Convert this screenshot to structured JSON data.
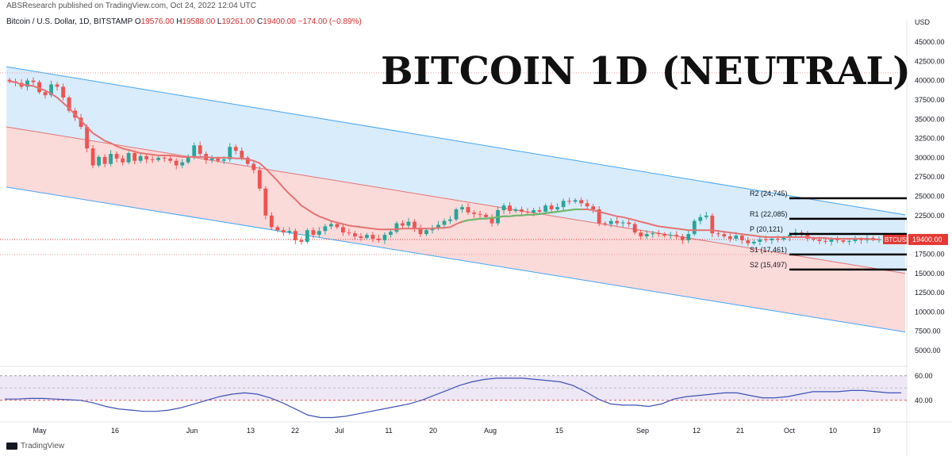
{
  "header": {
    "published": "ABSResearch published on TradingView.com, Oct 24, 2022 12:04 UTC"
  },
  "symbol": {
    "name": "Bitcoin / U.S. Dollar, 1D, BITSTAMP",
    "open_label": "O",
    "open": "19576.00",
    "high_label": "H",
    "high": "19588.00",
    "low_label": "L",
    "low": "19261.00",
    "close_label": "C",
    "close": "19400.00",
    "change": "−174.00 (−0.89%)"
  },
  "title": "BITCOIN 1D (NEUTRAL)",
  "footer": {
    "brand": "TradingView"
  },
  "colors": {
    "up": "#26a69a",
    "down": "#ef5350",
    "ma_down": "#e57373",
    "ma_up": "#66bb6a",
    "channel_upper": "#d9ecfb",
    "channel_lower": "#fbdada",
    "channel_line": "#42a5f5",
    "pivot": "#000000",
    "rsi": "#3f51b5",
    "rsi_band": "#ede7f6",
    "price_tag": "#e53935"
  },
  "chart_data": {
    "type": "candlestick",
    "currency_label": "USD",
    "ylim": [
      5000,
      45000
    ],
    "y_ticks": [
      "45000.00",
      "42500.00",
      "40000.00",
      "37500.00",
      "35000.00",
      "32500.00",
      "30000.00",
      "27500.00",
      "25000.00",
      "22500.00",
      "20000.00",
      "17500.00",
      "15000.00",
      "12500.00",
      "10000.00",
      "7500.00",
      "5000.00"
    ],
    "x_ticks": [
      "May",
      "16",
      "Jun",
      "13",
      "22",
      "Jul",
      "11",
      "20",
      "Aug",
      "15",
      "Sep",
      "12",
      "21",
      "Oct",
      "10",
      "19"
    ],
    "current_price_label": "19400.00",
    "ticker_tag": "BTCUSD",
    "pivots": [
      {
        "label": "R2 (24,745)",
        "value": 24745
      },
      {
        "label": "R1 (22,085)",
        "value": 22085
      },
      {
        "label": "P (20,121)",
        "value": 20121
      },
      {
        "label": "S1 (17,461)",
        "value": 17461
      },
      {
        "label": "S2 (15,497)",
        "value": 15497
      }
    ],
    "channel": {
      "upper_start": 41800,
      "upper_end": 22600,
      "mid_start": 34000,
      "mid_end": 15000,
      "lower_start": 26200,
      "lower_end": 7400
    },
    "close_series": [
      39900,
      39700,
      39200,
      40000,
      39800,
      38500,
      38100,
      39500,
      39200,
      37800,
      36100,
      35200,
      34000,
      31200,
      29000,
      30100,
      29200,
      30500,
      29900,
      29400,
      30600,
      29600,
      30200,
      29800,
      29700,
      30000,
      29900,
      29600,
      29000,
      29400,
      30200,
      31600,
      30500,
      29700,
      29900,
      29600,
      29800,
      31400,
      30900,
      30000,
      29200,
      28400,
      26000,
      22500,
      21000,
      20600,
      20300,
      20500,
      19300,
      19100,
      20600,
      20000,
      20500,
      21100,
      21400,
      21000,
      20300,
      20200,
      19800,
      19600,
      20000,
      19500,
      19300,
      20000,
      20400,
      21500,
      21200,
      21700,
      20900,
      20100,
      20600,
      20900,
      21300,
      21800,
      22000,
      23300,
      23600,
      22900,
      22700,
      22600,
      22300,
      21500,
      23200,
      23800,
      23100,
      23300,
      23000,
      22900,
      23200,
      23000,
      23800,
      23300,
      23600,
      24400,
      24300,
      24500,
      24100,
      23700,
      23300,
      21500,
      21400,
      21800,
      21500,
      21600,
      21400,
      20300,
      19800,
      20100,
      20200,
      20100,
      19900,
      20000,
      19800,
      19300,
      20100,
      21800,
      22300,
      22500,
      20200,
      20100,
      19800,
      19500,
      19900,
      19300,
      18900,
      19100,
      19400,
      19300,
      19500,
      19400,
      19600,
      20000,
      20300,
      20100,
      19500,
      19400,
      19200,
      19100,
      19400,
      19300,
      19100,
      19200,
      19400,
      19300,
      19600,
      19400,
      19400
    ],
    "sma_series": [
      39900,
      39800,
      39500,
      39400,
      39300,
      39000,
      38700,
      38300,
      37800,
      37100,
      36400,
      35600,
      34800,
      34000,
      33200,
      32700,
      32200,
      31900,
      31500,
      31200,
      31000,
      30800,
      30600,
      30500,
      30400,
      30300,
      30300,
      30300,
      30200,
      30100,
      30100,
      30100,
      30100,
      30100,
      30000,
      30000,
      30000,
      30000,
      29900,
      29900,
      29800,
      29600,
      29300,
      28600,
      27800,
      27000,
      26100,
      25300,
      24600,
      23800,
      23300,
      22800,
      22400,
      22100,
      21800,
      21600,
      21400,
      21200,
      21100,
      21000,
      20900,
      20800,
      20700,
      20700,
      20700,
      20700,
      20800,
      20800,
      20800,
      20800,
      20800,
      20800,
      20900,
      20900,
      21000,
      21400,
      21700,
      21900,
      22000,
      22100,
      22100,
      22200,
      22300,
      22400,
      22400,
      22500,
      22500,
      22600,
      22600,
      22700,
      22800,
      22900,
      23000,
      23100,
      23200,
      23300,
      23300,
      23300,
      23200,
      23000,
      22800,
      22600,
      22400,
      22300,
      22100,
      21900,
      21700,
      21500,
      21300,
      21100,
      21000,
      20900,
      20800,
      20700,
      20600,
      20600,
      20600,
      20600,
      20600,
      20500,
      20400,
      20300,
      20200,
      20100,
      20000,
      19900,
      19800,
      19700,
      19700,
      19700,
      19700,
      19700,
      19700,
      19700,
      19700,
      19600,
      19600,
      19600,
      19500,
      19500,
      19500,
      19500,
      19500,
      19500,
      19500,
      19400,
      19400
    ],
    "rsi": {
      "ylim": [
        25,
        65
      ],
      "upper": 60,
      "lower": 40,
      "y_ticks": [
        "60.00",
        "40.00"
      ],
      "values": [
        41,
        41,
        41.5,
        41.5,
        41,
        40.5,
        40,
        38,
        35,
        33,
        32,
        31,
        31,
        32,
        34,
        37,
        40,
        43,
        45,
        46,
        45,
        42,
        38,
        33,
        28,
        26,
        26,
        27,
        29,
        31,
        33,
        35,
        37,
        40,
        44,
        48,
        52,
        55,
        57,
        58,
        58,
        58,
        57,
        56,
        55,
        52,
        47,
        41,
        37,
        36,
        36,
        35,
        37,
        41,
        43,
        44,
        45,
        46,
        46,
        44,
        42,
        42,
        43,
        45,
        47,
        47,
        47,
        48,
        48,
        47,
        46,
        46
      ]
    }
  }
}
